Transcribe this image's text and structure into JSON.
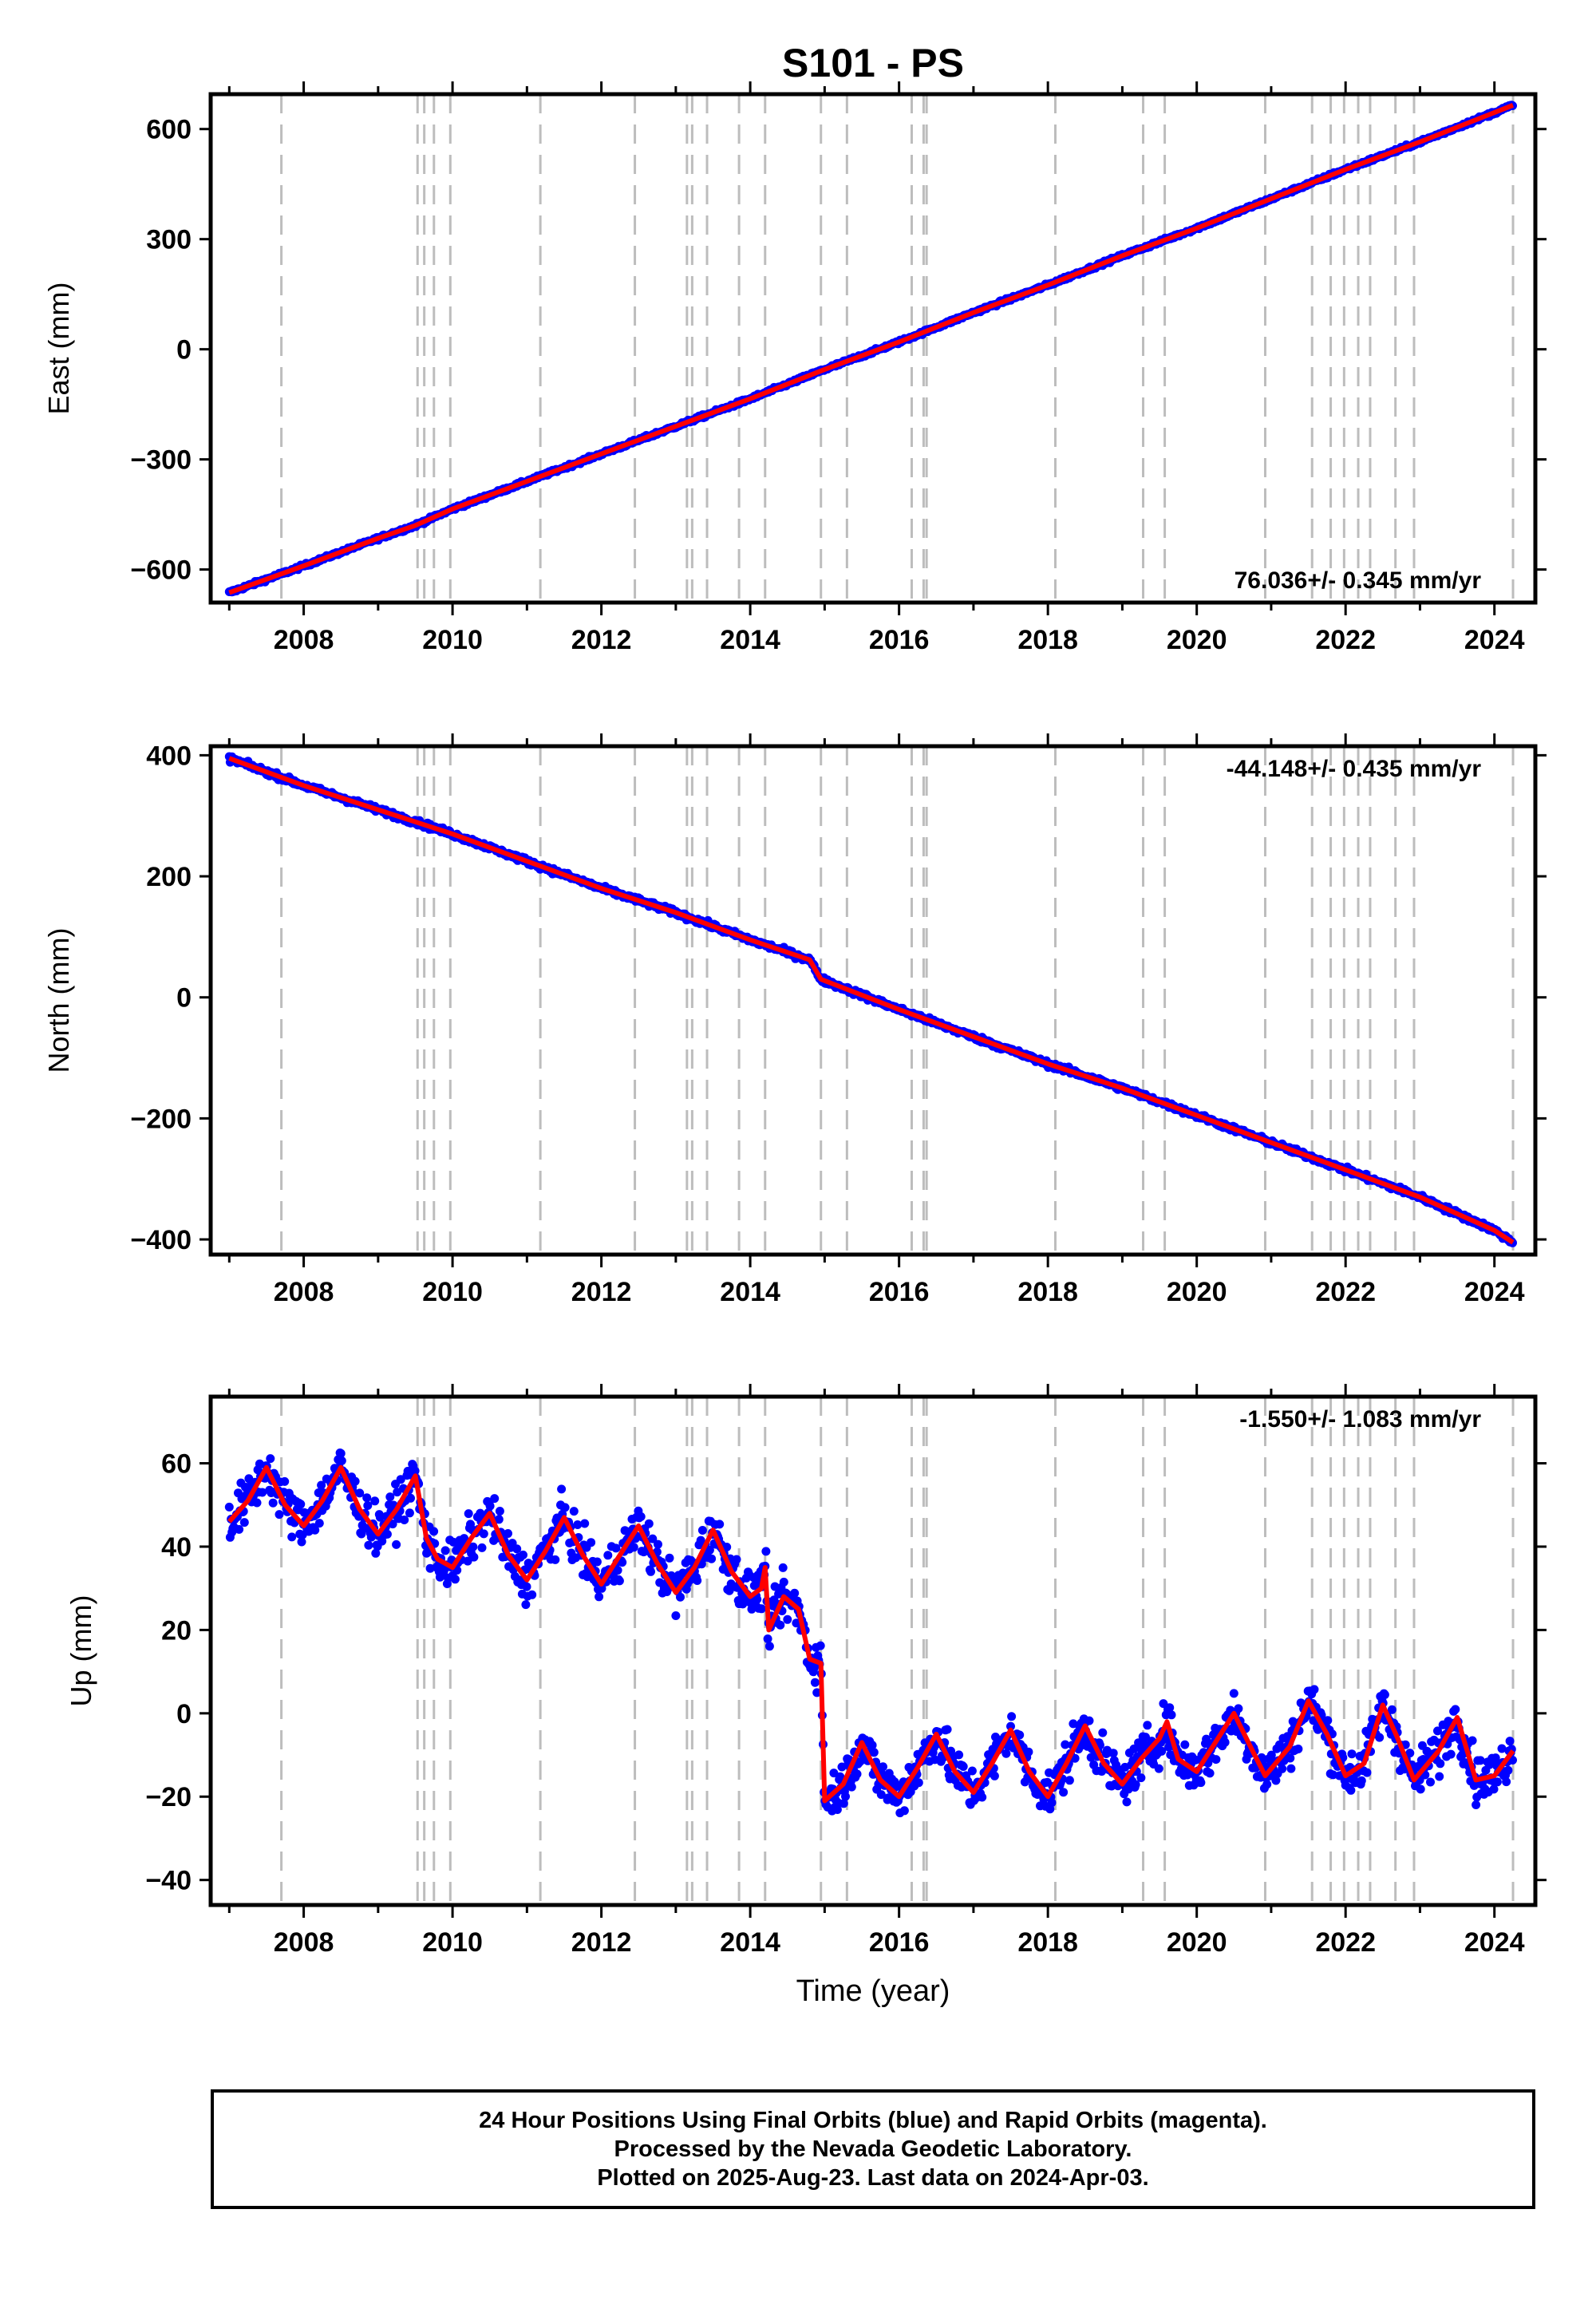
{
  "title": "S101 - PS",
  "colors": {
    "final_orbit_points": "#0000ff",
    "model_line": "#ff0000",
    "event_lines": "#bdbdbd",
    "frame": "#000000"
  },
  "x_axis": {
    "range": [
      2006.75,
      2024.55
    ],
    "ticks": [
      2008,
      2010,
      2012,
      2014,
      2016,
      2018,
      2020,
      2022,
      2024
    ],
    "tick_labels": [
      "2008",
      "2010",
      "2012",
      "2014",
      "2016",
      "2018",
      "2020",
      "2022",
      "2024"
    ],
    "label": "Time (year)"
  },
  "event_years": [
    2007.7,
    2009.53,
    2009.62,
    2009.75,
    2009.97,
    2011.18,
    2012.45,
    2013.15,
    2013.22,
    2013.42,
    2013.85,
    2014.2,
    2014.95,
    2015.3,
    2016.17,
    2016.33,
    2016.37,
    2018.1,
    2019.28,
    2019.57,
    2020.92,
    2021.55,
    2021.8,
    2021.98,
    2022.17,
    2022.33,
    2022.67,
    2022.92,
    2024.25
  ],
  "footer": {
    "line1": "24 Hour Positions Using Final Orbits (blue) and Rapid Orbits (magenta).",
    "line2": "Processed by the Nevada Geodetic Laboratory.",
    "line3": "Plotted on 2025-Aug-23. Last data on 2024-Apr-03."
  },
  "chart_data": [
    {
      "type": "scatter",
      "title": "S101 - PS",
      "ylabel": "East (mm)",
      "xlabel": "",
      "ylim": [
        -690,
        695
      ],
      "yticks": [
        -600,
        -300,
        0,
        300,
        600
      ],
      "ytick_labels": [
        "−600",
        "−300",
        "0",
        "300",
        "600"
      ],
      "rate_label": "76.036+/- 0.345 mm/yr",
      "rate_position": "bottom-right",
      "series": [
        {
          "name": "",
          "points": [
            [
              2007.0,
              -663
            ],
            [
              2008.0,
              -590
            ],
            [
              2009.0,
              -515
            ],
            [
              2009.5,
              -480
            ],
            [
              2010.0,
              -435
            ],
            [
              2011.0,
              -360
            ],
            [
              2012.0,
              -285
            ],
            [
              2013.0,
              -210
            ],
            [
              2014.0,
              -135
            ],
            [
              2015.0,
              -55
            ],
            [
              2016.0,
              20
            ],
            [
              2017.0,
              100
            ],
            [
              2018.0,
              175
            ],
            [
              2019.0,
              255
            ],
            [
              2020.0,
              330
            ],
            [
              2021.0,
              410
            ],
            [
              2022.0,
              490
            ],
            [
              2023.0,
              565
            ],
            [
              2024.0,
              645
            ],
            [
              2024.25,
              665
            ]
          ]
        }
      ]
    },
    {
      "type": "scatter",
      "title": "",
      "ylabel": "North (mm)",
      "xlabel": "",
      "ylim": [
        -425,
        415
      ],
      "yticks": [
        -400,
        -200,
        0,
        200,
        400
      ],
      "ytick_labels": [
        "−400",
        "−200",
        "0",
        "200",
        "400"
      ],
      "rate_label": "-44.148+/- 0.435 mm/yr",
      "rate_position": "top-right",
      "series": [
        {
          "name": "",
          "points": [
            [
              2007.0,
              395
            ],
            [
              2008.0,
              350
            ],
            [
              2009.0,
              310
            ],
            [
              2009.5,
              290
            ],
            [
              2010.0,
              270
            ],
            [
              2011.0,
              225
            ],
            [
              2012.0,
              180
            ],
            [
              2013.0,
              140
            ],
            [
              2014.0,
              95
            ],
            [
              2014.8,
              62
            ],
            [
              2014.95,
              30
            ],
            [
              2016.0,
              -20
            ],
            [
              2017.0,
              -65
            ],
            [
              2018.0,
              -110
            ],
            [
              2019.0,
              -150
            ],
            [
              2020.0,
              -195
            ],
            [
              2021.0,
              -240
            ],
            [
              2022.0,
              -285
            ],
            [
              2023.0,
              -330
            ],
            [
              2024.0,
              -385
            ],
            [
              2024.25,
              -405
            ]
          ]
        }
      ]
    },
    {
      "type": "scatter",
      "title": "",
      "ylabel": "Up (mm)",
      "xlabel": "Time (year)",
      "ylim": [
        -46,
        76
      ],
      "yticks": [
        -40,
        -20,
        0,
        20,
        40,
        60
      ],
      "ytick_labels": [
        "−40",
        "−20",
        "0",
        "20",
        "40",
        "60"
      ],
      "rate_label": "-1.550+/- 1.083 mm/yr",
      "rate_position": "top-right",
      "series": [
        {
          "name": "",
          "points": [
            [
              2007.0,
              46
            ],
            [
              2007.25,
              51
            ],
            [
              2007.5,
              59
            ],
            [
              2007.75,
              50
            ],
            [
              2008.0,
              45
            ],
            [
              2008.25,
              51
            ],
            [
              2008.5,
              59
            ],
            [
              2008.75,
              49
            ],
            [
              2009.0,
              43
            ],
            [
              2009.25,
              49
            ],
            [
              2009.5,
              57
            ],
            [
              2009.65,
              42
            ],
            [
              2009.8,
              37
            ],
            [
              2010.0,
              35
            ],
            [
              2010.25,
              42
            ],
            [
              2010.5,
              48
            ],
            [
              2010.75,
              38
            ],
            [
              2011.0,
              32
            ],
            [
              2011.25,
              39
            ],
            [
              2011.5,
              47
            ],
            [
              2011.75,
              38
            ],
            [
              2012.0,
              31
            ],
            [
              2012.25,
              38
            ],
            [
              2012.5,
              45
            ],
            [
              2012.75,
              36
            ],
            [
              2013.0,
              29
            ],
            [
              2013.25,
              35
            ],
            [
              2013.5,
              44
            ],
            [
              2013.75,
              34
            ],
            [
              2014.0,
              28
            ],
            [
              2014.15,
              30
            ],
            [
              2014.2,
              35
            ],
            [
              2014.25,
              20
            ],
            [
              2014.45,
              28
            ],
            [
              2014.65,
              25
            ],
            [
              2014.8,
              13
            ],
            [
              2014.95,
              12
            ],
            [
              2015.0,
              -21
            ],
            [
              2015.25,
              -17
            ],
            [
              2015.5,
              -7
            ],
            [
              2015.75,
              -16
            ],
            [
              2016.0,
              -20
            ],
            [
              2016.25,
              -13
            ],
            [
              2016.5,
              -5
            ],
            [
              2016.75,
              -14
            ],
            [
              2017.0,
              -19
            ],
            [
              2017.25,
              -12
            ],
            [
              2017.5,
              -4
            ],
            [
              2017.75,
              -14
            ],
            [
              2018.0,
              -20
            ],
            [
              2018.25,
              -12
            ],
            [
              2018.5,
              -3
            ],
            [
              2018.75,
              -12
            ],
            [
              2019.0,
              -17
            ],
            [
              2019.25,
              -11
            ],
            [
              2019.5,
              -6
            ],
            [
              2019.6,
              -2
            ],
            [
              2019.75,
              -11
            ],
            [
              2020.0,
              -14
            ],
            [
              2020.25,
              -7
            ],
            [
              2020.5,
              0
            ],
            [
              2020.75,
              -9
            ],
            [
              2020.92,
              -15
            ],
            [
              2021.25,
              -8
            ],
            [
              2021.5,
              3
            ],
            [
              2021.75,
              -5
            ],
            [
              2022.0,
              -15
            ],
            [
              2022.25,
              -12
            ],
            [
              2022.5,
              2
            ],
            [
              2022.7,
              -6
            ],
            [
              2022.92,
              -16
            ],
            [
              2023.25,
              -9
            ],
            [
              2023.5,
              -1
            ],
            [
              2023.75,
              -16
            ],
            [
              2024.0,
              -15
            ],
            [
              2024.25,
              -9
            ]
          ]
        }
      ]
    }
  ]
}
